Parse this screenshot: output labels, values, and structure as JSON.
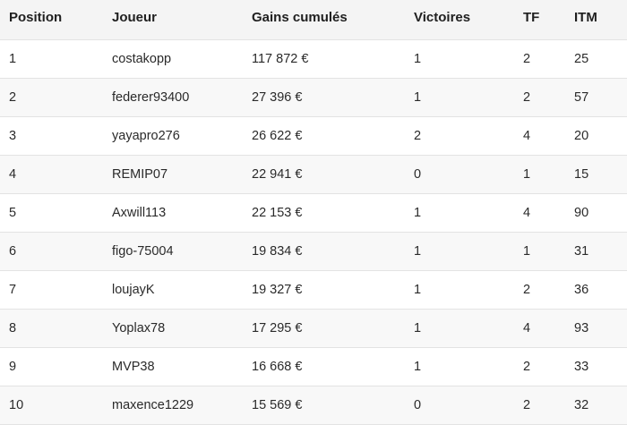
{
  "table": {
    "headers": [
      "Position",
      "Joueur",
      "Gains cumulés",
      "Victoires",
      "TF",
      "ITM"
    ],
    "rows": [
      [
        "1",
        "costakopp",
        "117 872 €",
        "1",
        "2",
        "25"
      ],
      [
        "2",
        "federer93400",
        "27 396 €",
        "1",
        "2",
        "57"
      ],
      [
        "3",
        "yayapro276",
        "26 622 €",
        "2",
        "4",
        "20"
      ],
      [
        "4",
        "REMIP07",
        "22 941 €",
        "0",
        "1",
        "15"
      ],
      [
        "5",
        "Axwill113",
        "22 153 €",
        "1",
        "4",
        "90"
      ],
      [
        "6",
        "figo-75004",
        "19 834 €",
        "1",
        "1",
        "31"
      ],
      [
        "7",
        "loujayK",
        "19 327 €",
        "1",
        "2",
        "36"
      ],
      [
        "8",
        "Yoplax78",
        "17 295 €",
        "1",
        "4",
        "93"
      ],
      [
        "9",
        "MVP38",
        "16 668 €",
        "1",
        "2",
        "33"
      ],
      [
        "10",
        "maxence1229",
        "15 569 €",
        "0",
        "2",
        "32"
      ]
    ]
  }
}
